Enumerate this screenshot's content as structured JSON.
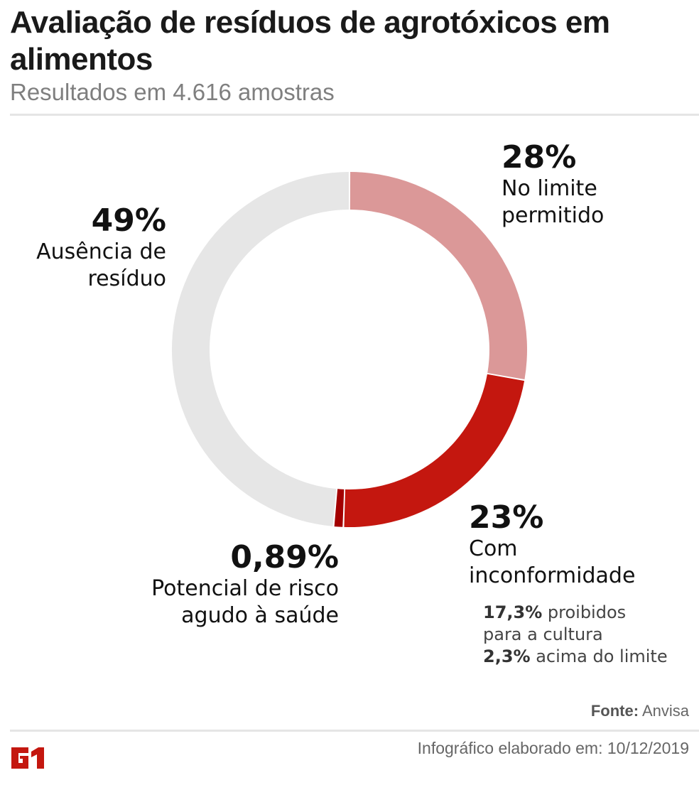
{
  "header": {
    "title": "Avaliação de resíduos de agrotóxicos em alimentos",
    "subtitle": "Resultados em 4.616 amostras"
  },
  "labels": {
    "no_limite": {
      "pct": "28%",
      "line1": "No limite",
      "line2": "permitido"
    },
    "inconformidade": {
      "pct": "23%",
      "line1": "Com",
      "line2": "inconformidade"
    },
    "risco": {
      "pct": "0,89%",
      "line1": "Potencial de risco",
      "line2": "agudo à saúde"
    },
    "ausencia": {
      "pct": "49%",
      "line1": "Ausência de",
      "line2": "resíduo"
    }
  },
  "breakdown": [
    {
      "value": "17,3%",
      "text": " proibidos"
    },
    {
      "value": "",
      "text": "para a cultura"
    },
    {
      "value": "2,3%",
      "text": " acima do limite"
    }
  ],
  "footer": {
    "source_label": "Fonte:",
    "source_value": " Anvisa",
    "credit": "Infográfico elaborado em: 10/12/2019",
    "logo": "G1"
  },
  "colors": {
    "no_limite": "#db9898",
    "inconformidade": "#c4170f",
    "risco": "#a30000",
    "ausencia": "#e6e6e6",
    "brand": "#c4170f"
  },
  "chart_data": {
    "type": "pie",
    "variant": "donut",
    "title": "Avaliação de resíduos de agrotóxicos em alimentos",
    "subtitle": "Resultados em 4.616 amostras",
    "categories": [
      "No limite permitido",
      "Com inconformidade",
      "Potencial de risco agudo à saúde",
      "Ausência de resíduo"
    ],
    "values": [
      28,
      23,
      0.89,
      49
    ],
    "unit": "%",
    "colors": [
      "#db9898",
      "#c4170f",
      "#a30000",
      "#e6e6e6"
    ],
    "sub_breakdown": {
      "Com inconformidade": [
        {
          "label": "proibidos para a cultura",
          "value": 17.3
        },
        {
          "label": "acima do limite",
          "value": 2.3
        }
      ]
    },
    "source": "Anvisa",
    "date": "10/12/2019"
  }
}
